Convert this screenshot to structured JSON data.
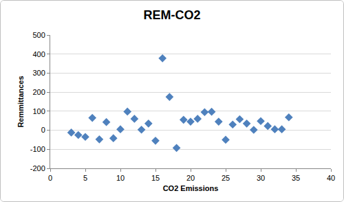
{
  "chart_data": {
    "type": "scatter",
    "title": "REM-CO2",
    "x_label": "CO2 Emissions",
    "y_label": "Remmittances",
    "x": [
      3,
      4,
      5,
      6,
      7,
      8,
      9,
      10,
      11,
      12,
      13,
      14,
      15,
      16,
      17,
      18,
      19,
      20,
      21,
      22,
      23,
      24,
      25,
      26,
      27,
      28,
      29,
      30,
      31,
      32,
      33,
      34
    ],
    "values": [
      -12,
      -25,
      -35,
      65,
      -48,
      43,
      -42,
      5,
      98,
      60,
      3,
      35,
      -55,
      378,
      175,
      -93,
      55,
      45,
      60,
      95,
      97,
      45,
      -50,
      30,
      58,
      35,
      2,
      48,
      22,
      5,
      5,
      68
    ],
    "color": "#4f81bd",
    "marker": "diamond",
    "xlim": [
      0,
      40
    ],
    "xticks": [
      0,
      5,
      10,
      15,
      20,
      25,
      30,
      35,
      40
    ],
    "ylim": [
      -200,
      500
    ],
    "yticks": [
      -200,
      -100,
      0,
      100,
      200,
      300,
      400,
      500
    ],
    "grid": true
  }
}
